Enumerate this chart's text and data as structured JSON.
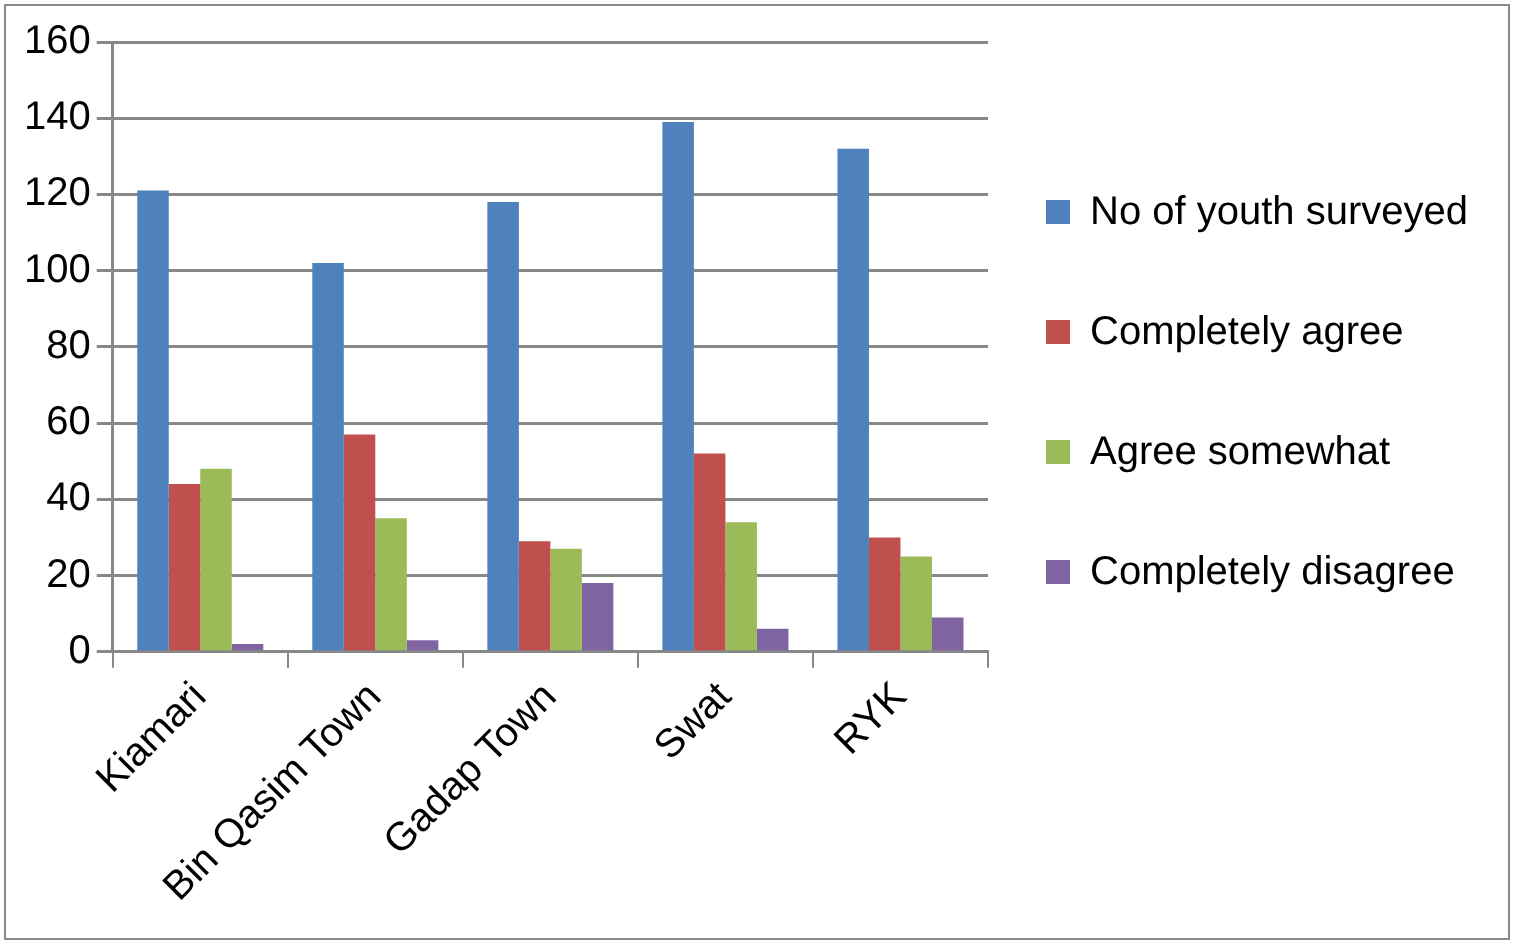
{
  "chart_data": {
    "type": "bar",
    "categories": [
      "Kiamari",
      "Bin Qasim Town",
      "Gadap Town",
      "Swat",
      "RYK"
    ],
    "series": [
      {
        "name": "No of youth surveyed",
        "color": "#4f81bd",
        "values": [
          121,
          102,
          118,
          139,
          132
        ]
      },
      {
        "name": "Completely agree",
        "color": "#c0504d",
        "values": [
          44,
          57,
          29,
          52,
          30
        ]
      },
      {
        "name": "Agree somewhat",
        "color": "#9bbb59",
        "values": [
          48,
          35,
          27,
          34,
          25
        ]
      },
      {
        "name": "Completely disagree",
        "color": "#8064a2",
        "values": [
          2,
          3,
          18,
          6,
          9
        ]
      }
    ],
    "ylim": [
      0,
      160
    ],
    "yticks": [
      0,
      20,
      40,
      60,
      80,
      100,
      120,
      140,
      160
    ],
    "grid": "y",
    "legend": "right"
  }
}
